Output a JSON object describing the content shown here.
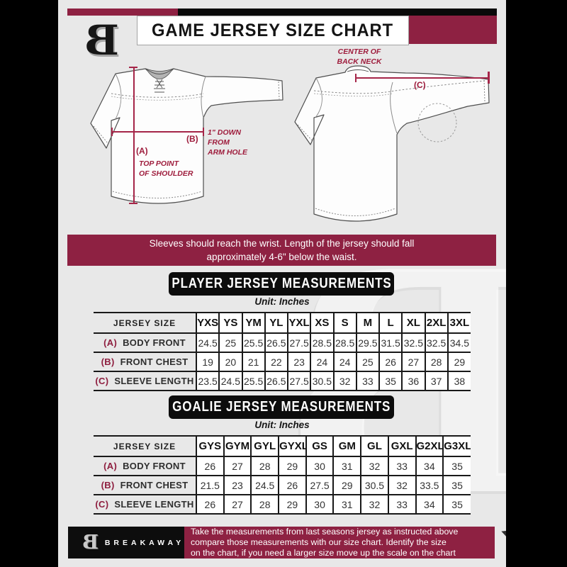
{
  "colors": {
    "maroon": "#8e2142",
    "black": "#0d0d0d",
    "background": "#e8e8e8",
    "annotation": "#9e1c3c"
  },
  "header": {
    "title": "GAME JERSEY SIZE CHART",
    "logo_letter": "B"
  },
  "watermark_letter": "B",
  "diagram": {
    "front": {
      "a_tag": "(A)",
      "a_caption": "TOP POINT\nOF SHOULDER",
      "b_tag": "(B)",
      "b_caption": "1\" DOWN\nFROM\nARM HOLE"
    },
    "back": {
      "c_tag": "(C)",
      "caption": "CENTER OF\nBACK NECK"
    }
  },
  "notice": {
    "line1": "Sleeves should reach the wrist. Length of the jersey should fall",
    "line2": "approximately 4-6\" below the waist."
  },
  "player": {
    "title": "PLAYER JERSEY MEASUREMENTS",
    "unit": "Unit: Inches",
    "size_header_label": "JERSEY SIZE",
    "sizes": [
      "YXS",
      "YS",
      "YM",
      "YL",
      "YXL",
      "XS",
      "S",
      "M",
      "L",
      "XL",
      "2XL",
      "3XL"
    ],
    "rows": [
      {
        "tag": "(A)",
        "label": "BODY FRONT",
        "values": [
          "24.5",
          "25",
          "25.5",
          "26.5",
          "27.5",
          "28.5",
          "28.5",
          "29.5",
          "31.5",
          "32.5",
          "32.5",
          "34.5"
        ]
      },
      {
        "tag": "(B)",
        "label": "FRONT CHEST",
        "values": [
          "19",
          "20",
          "21",
          "22",
          "23",
          "24",
          "24",
          "25",
          "26",
          "27",
          "28",
          "29"
        ]
      },
      {
        "tag": "(C)",
        "label": "SLEEVE LENGTH",
        "values": [
          "23.5",
          "24.5",
          "25.5",
          "26.5",
          "27.5",
          "30.5",
          "32",
          "33",
          "35",
          "36",
          "37",
          "38"
        ]
      }
    ]
  },
  "goalie": {
    "title": "GOALIE JERSEY MEASUREMENTS",
    "unit": "Unit: Inches",
    "size_header_label": "JERSEY SIZE",
    "sizes": [
      "GYS",
      "GYM",
      "GYL",
      "GYXL",
      "GS",
      "GM",
      "GL",
      "GXL",
      "G2XL",
      "G3XL"
    ],
    "rows": [
      {
        "tag": "(A)",
        "label": "BODY FRONT",
        "values": [
          "26",
          "27",
          "28",
          "29",
          "30",
          "31",
          "32",
          "33",
          "34",
          "35"
        ]
      },
      {
        "tag": "(B)",
        "label": "FRONT CHEST",
        "values": [
          "21.5",
          "23",
          "24.5",
          "26",
          "27.5",
          "29",
          "30.5",
          "32",
          "33.5",
          "35"
        ]
      },
      {
        "tag": "(C)",
        "label": "SLEEVE LENGTH",
        "values": [
          "26",
          "27",
          "28",
          "29",
          "30",
          "31",
          "32",
          "33",
          "34",
          "35"
        ]
      }
    ]
  },
  "footer": {
    "brand": "BREAKAWAY",
    "logo_letter": "B",
    "line1": "Take the measurements from last seasons jersey as instructed above",
    "line2": "compare those measurements  with our size chart. Identify the size",
    "line3": "on the chart, if you need a larger size move up the scale on the chart"
  }
}
